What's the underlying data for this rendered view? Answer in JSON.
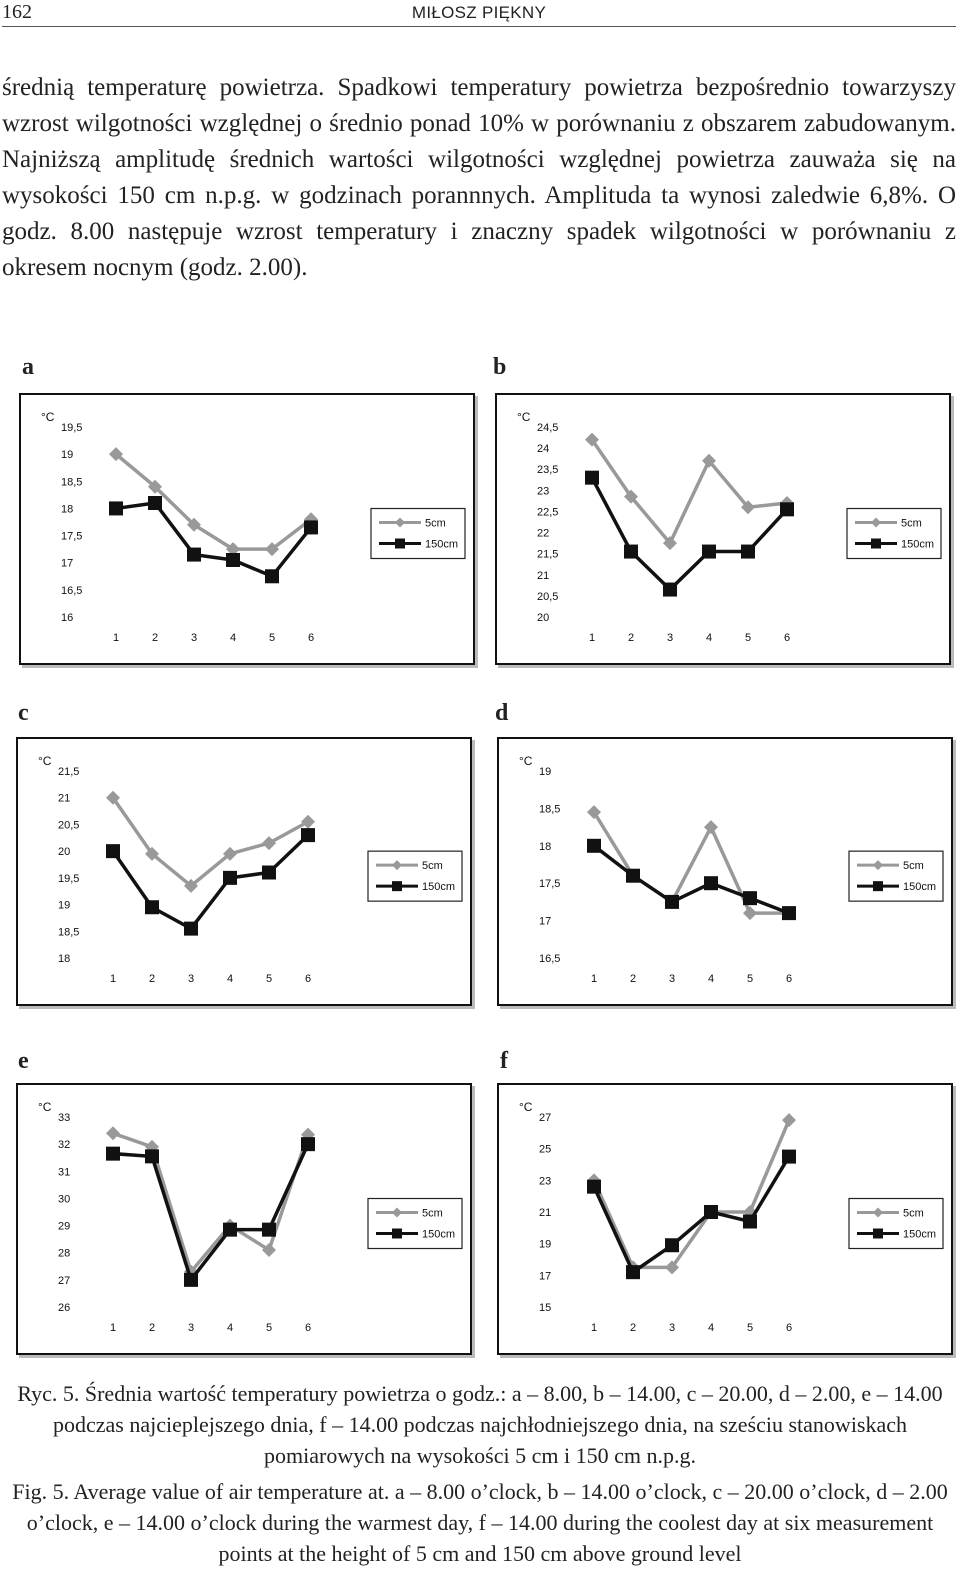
{
  "header": {
    "page_number": "162",
    "running_head": "MIŁOSZ PIĘKNY"
  },
  "body_text": "średnią temperaturę powietrza. Spadkowi temperatury powietrza bezpośrednio towarzyszy wzrost wilgotności względnej o średnio ponad 10% w porównaniu z obszarem zabudowanym. Najniższą amplitudę średnich wartości wilgotności względnej powietrza zauważa się na wysokości 150 cm n.p.g. w godzinach porannnych. Amplituda ta wynosi zaledwie 6,8%. O godz. 8.00 następuje wzrost temperatury i znaczny spadek wilgotności w porównaniu z okresem nocnym (godz. 2.00).",
  "colors": {
    "series_5cm": "#999999",
    "series_150cm": "#111111"
  },
  "chart_data": [
    {
      "type": "line",
      "label": "a",
      "unit": "°C",
      "categories": [
        "1",
        "2",
        "3",
        "4",
        "5",
        "6"
      ],
      "yticks": [
        "19,5",
        "19",
        "18,5",
        "18",
        "17,5",
        "17",
        "16,5",
        "16"
      ],
      "ylim": [
        16,
        19.5
      ],
      "series": [
        {
          "name": "5cm",
          "values": [
            19.0,
            18.4,
            17.7,
            17.25,
            17.25,
            17.8
          ]
        },
        {
          "name": "150cm",
          "values": [
            18.0,
            18.1,
            17.15,
            17.05,
            16.75,
            17.65
          ]
        }
      ],
      "legend_position": "right"
    },
    {
      "type": "line",
      "label": "b",
      "unit": "°C",
      "categories": [
        "1",
        "2",
        "3",
        "4",
        "5",
        "6"
      ],
      "yticks": [
        "24,5",
        "24",
        "23,5",
        "23",
        "22,5",
        "22",
        "21,5",
        "21",
        "20,5",
        "20"
      ],
      "ylim": [
        20,
        24.5
      ],
      "series": [
        {
          "name": "5cm",
          "values": [
            24.2,
            22.85,
            21.75,
            23.7,
            22.6,
            22.7
          ]
        },
        {
          "name": "150cm",
          "values": [
            23.3,
            21.55,
            20.65,
            21.55,
            21.55,
            22.55
          ]
        }
      ],
      "legend_position": "right"
    },
    {
      "type": "line",
      "label": "c",
      "unit": "°C",
      "categories": [
        "1",
        "2",
        "3",
        "4",
        "5",
        "6"
      ],
      "yticks": [
        "21,5",
        "21",
        "20,5",
        "20",
        "19,5",
        "19",
        "18,5",
        "18"
      ],
      "ylim": [
        18,
        21.5
      ],
      "series": [
        {
          "name": "5cm",
          "values": [
            21.0,
            19.95,
            19.35,
            19.95,
            20.15,
            20.55
          ]
        },
        {
          "name": "150cm",
          "values": [
            20.0,
            18.95,
            18.55,
            19.5,
            19.6,
            20.3
          ]
        }
      ],
      "legend_position": "right"
    },
    {
      "type": "line",
      "label": "d",
      "unit": "°C",
      "categories": [
        "1",
        "2",
        "3",
        "4",
        "5",
        "6"
      ],
      "yticks": [
        "19",
        "18,5",
        "18",
        "17,5",
        "17",
        "16,5"
      ],
      "ylim": [
        16.5,
        19
      ],
      "series": [
        {
          "name": "5cm",
          "values": [
            18.45,
            17.6,
            17.25,
            18.25,
            17.1,
            17.1
          ]
        },
        {
          "name": "150cm",
          "values": [
            18.0,
            17.6,
            17.25,
            17.5,
            17.3,
            17.1
          ]
        }
      ],
      "legend_position": "right"
    },
    {
      "type": "line",
      "label": "e",
      "unit": "°C",
      "categories": [
        "1",
        "2",
        "3",
        "4",
        "5",
        "6"
      ],
      "yticks": [
        "33",
        "32",
        "31",
        "30",
        "29",
        "28",
        "27",
        "26"
      ],
      "ylim": [
        26,
        33
      ],
      "series": [
        {
          "name": "5cm",
          "values": [
            32.4,
            31.9,
            27.3,
            29.0,
            28.1,
            32.35
          ]
        },
        {
          "name": "150cm",
          "values": [
            31.65,
            31.55,
            27.0,
            28.85,
            28.85,
            32.0
          ]
        }
      ],
      "legend_position": "right"
    },
    {
      "type": "line",
      "label": "f",
      "unit": "°C",
      "categories": [
        "1",
        "2",
        "3",
        "4",
        "5",
        "6"
      ],
      "yticks": [
        "27",
        "25",
        "23",
        "21",
        "19",
        "17",
        "15"
      ],
      "ylim": [
        15,
        27
      ],
      "series": [
        {
          "name": "5cm",
          "values": [
            23.0,
            17.5,
            17.5,
            21.0,
            21.0,
            26.8
          ]
        },
        {
          "name": "150cm",
          "values": [
            22.6,
            17.2,
            18.9,
            21.0,
            20.4,
            24.5
          ]
        }
      ],
      "legend_position": "right"
    }
  ],
  "caption_pl": "Ryc. 5. Średnia wartość temperatury powietrza o godz.: a – 8.00, b – 14.00, c – 20.00, d – 2.00, e – 14.00 podczas najcieplejszego dnia, f – 14.00 podczas najchłodniejszego dnia, na sześciu stanowiskach pomiarowych na wysokości 5 cm i 150 cm n.p.g.",
  "caption_en": "Fig. 5. Average value of air temperature at. a – 8.00 o’clock, b – 14.00 o’clock, c – 20.00 o’clock, d – 2.00 o’clock, e – 14.00 o’clock during the warmest day, f – 14.00 during the coolest day at six measurement points at the height of 5 cm and 150 cm above ground level"
}
